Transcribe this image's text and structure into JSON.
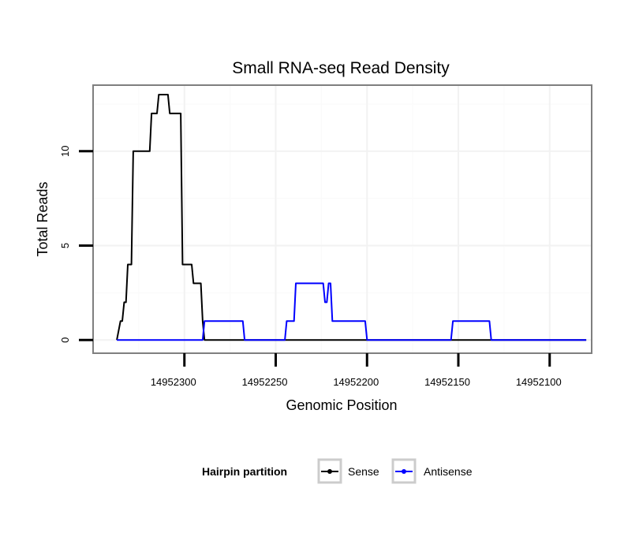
{
  "chart_data": {
    "type": "line",
    "title": "Small RNA-seq Read Density",
    "xlabel": "Genomic Position",
    "ylabel": "Total Reads",
    "xlim": [
      14952350,
      14952077
    ],
    "ylim": [
      -0.7,
      13.5
    ],
    "x_reversed": true,
    "x_ticks": [
      14952300,
      14952250,
      14952200,
      14952150,
      14952100
    ],
    "x_tick_labels": [
      "14952300",
      "14952250",
      "14952200",
      "14952150",
      "14952100"
    ],
    "y_ticks": [
      0,
      5,
      10
    ],
    "y_tick_labels": [
      "0",
      "5",
      "10"
    ],
    "grid": true,
    "legend": {
      "title": "Hairpin partition",
      "position": "bottom",
      "entries": [
        "Sense",
        "Antisense"
      ]
    },
    "series": [
      {
        "name": "Sense",
        "color": "#000000",
        "x": [
          14952337,
          14952335,
          14952334,
          14952333,
          14952332,
          14952331,
          14952329,
          14952328,
          14952327,
          14952326,
          14952319,
          14952318,
          14952315,
          14952314,
          14952309,
          14952308,
          14952302,
          14952301,
          14952300,
          14952299,
          14952296,
          14952295,
          14952291,
          14952290,
          14952289,
          14952288,
          14952200,
          14952080
        ],
        "y": [
          0,
          1,
          1,
          2,
          2,
          4,
          4,
          10,
          10,
          10,
          10,
          12,
          12,
          13,
          13,
          12,
          12,
          4,
          4,
          4,
          4,
          3,
          3,
          1,
          0,
          0,
          0,
          0
        ]
      },
      {
        "name": "Antisense",
        "color": "#0000ff",
        "x": [
          14952337,
          14952290,
          14952289,
          14952268,
          14952267,
          14952245,
          14952244,
          14952240,
          14952239,
          14952224,
          14952223,
          14952222,
          14952221,
          14952220,
          14952219,
          14952201,
          14952200,
          14952154,
          14952153,
          14952133,
          14952132,
          14952080
        ],
        "y": [
          0,
          0,
          1,
          1,
          0,
          0,
          1,
          1,
          3,
          3,
          2,
          2,
          3,
          3,
          1,
          1,
          0,
          0,
          1,
          1,
          0,
          0
        ]
      }
    ]
  }
}
